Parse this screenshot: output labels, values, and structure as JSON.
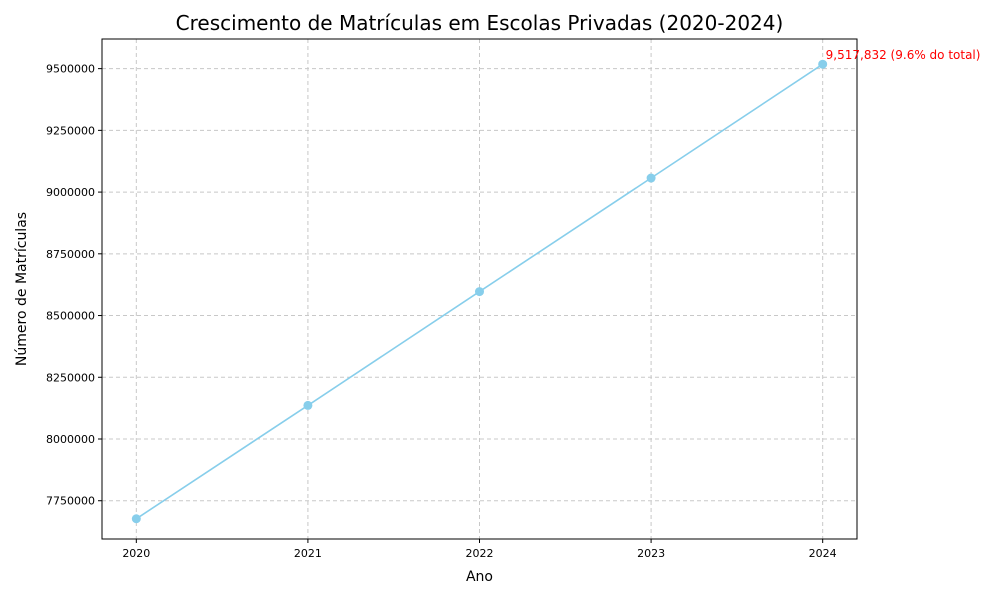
{
  "chart_data": {
    "type": "line",
    "title": "Crescimento de Matrículas em Escolas Privadas (2020-2024)",
    "xlabel": "Ano",
    "ylabel": "Número de Matrículas",
    "x": [
      "2020",
      "2021",
      "2022",
      "2023",
      "2024"
    ],
    "series": [
      {
        "values": [
          7677000,
          8136000,
          8597000,
          9057000,
          9517832
        ],
        "color": "#87CEEB",
        "marker": "circle"
      }
    ],
    "yticks": [
      "7750000",
      "8000000",
      "8250000",
      "8500000",
      "8750000",
      "9000000",
      "9250000",
      "9500000"
    ],
    "ytick_values": [
      7750000,
      8000000,
      8250000,
      8500000,
      8750000,
      9000000,
      9250000,
      9500000
    ],
    "ylim": [
      7595000,
      9620000
    ],
    "xlim": [
      -0.2,
      4.2
    ],
    "grid": true,
    "annotations": [
      {
        "x_index": 4,
        "y": 9517832,
        "text": "9,517,832 (9.6% do total)",
        "color": "#ff0000"
      }
    ]
  }
}
